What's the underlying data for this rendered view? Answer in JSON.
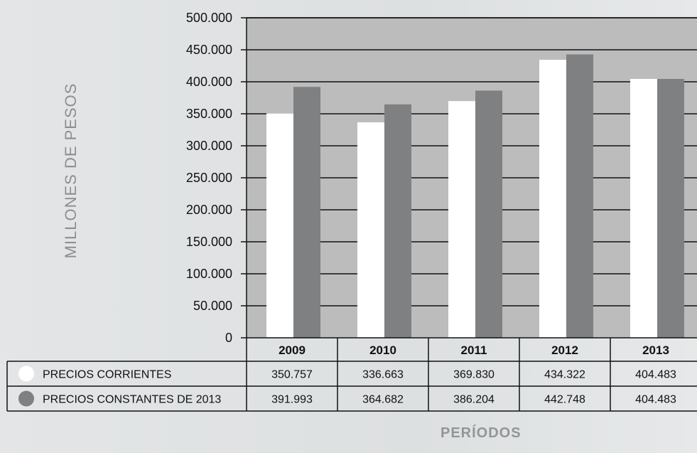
{
  "chart_data": {
    "type": "bar",
    "ylabel": "MILLONES DE PESOS",
    "xlabel": "PERÍODOS",
    "ylim": [
      0,
      500000
    ],
    "ytick_labels": [
      "0",
      "50.000",
      "100.000",
      "150.000",
      "200.000",
      "250.000",
      "300.000",
      "350.000",
      "400.000",
      "450.000",
      "500.000"
    ],
    "categories": [
      "2009",
      "2010",
      "2011",
      "2012",
      "2013"
    ],
    "series": [
      {
        "name": "PRECIOS CORRIENTES",
        "color": "#ffffff",
        "values": [
          350757,
          336663,
          369830,
          434322,
          404483
        ],
        "labels": [
          "350.757",
          "336.663",
          "369.830",
          "434.322",
          "404.483"
        ]
      },
      {
        "name": "PRECIOS CONSTANTES DE 2013",
        "color": "#7f8082",
        "values": [
          391993,
          364682,
          386204,
          442748,
          404483
        ],
        "labels": [
          "391.993",
          "364.682",
          "386.204",
          "442.748",
          "404.483"
        ]
      }
    ],
    "grid": true,
    "plot_background": "#bcbcbc",
    "legend": "data-table-below"
  }
}
